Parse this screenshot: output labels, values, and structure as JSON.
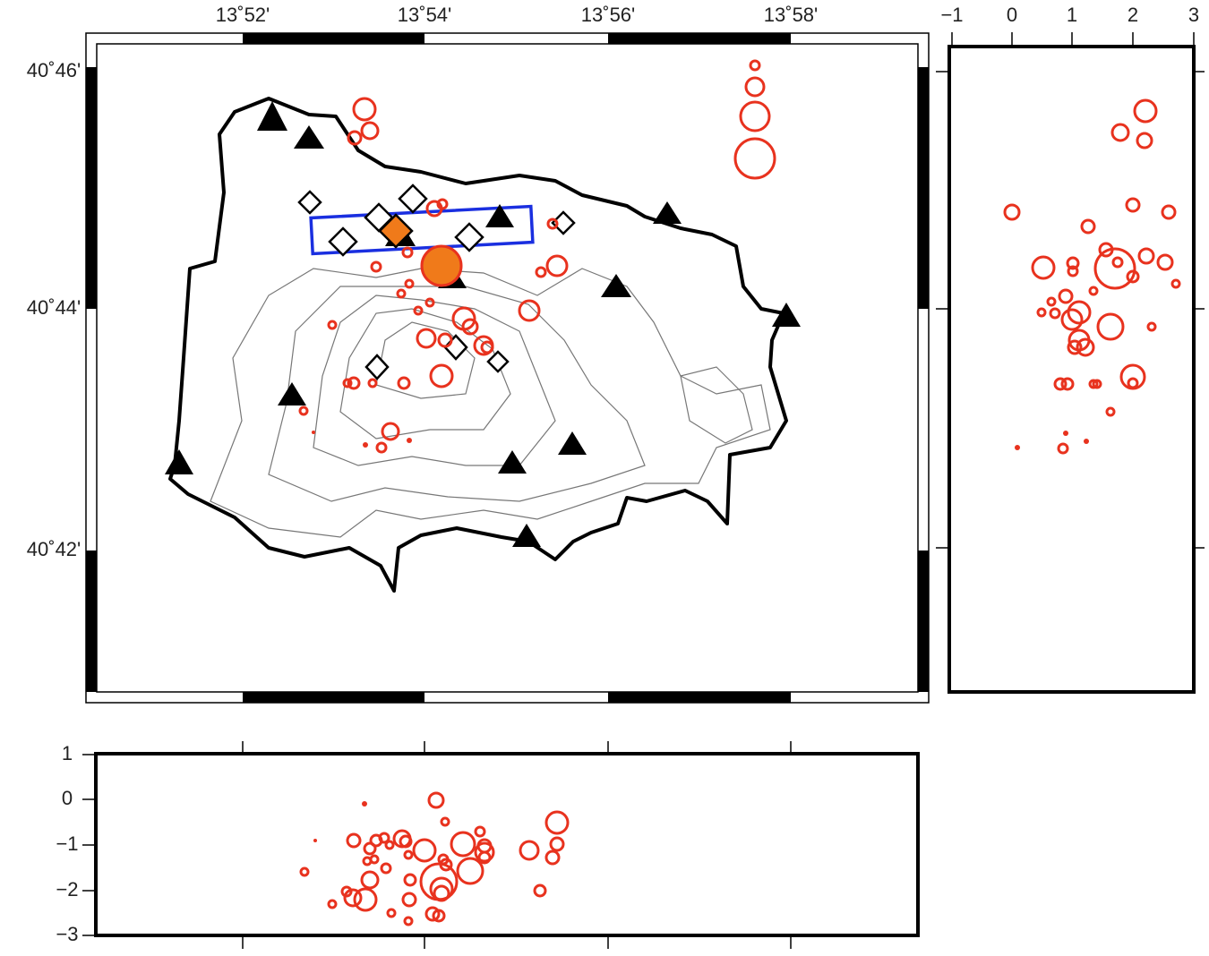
{
  "map": {
    "lon_labels": [
      "13˚52'",
      "13˚54'",
      "13˚56'",
      "13˚58'"
    ],
    "lat_labels": [
      "40˚46'",
      "40˚44'",
      "40˚42'"
    ]
  },
  "east_section": {
    "ticks": [
      "−1",
      "0",
      "1",
      "2",
      "3"
    ]
  },
  "north_section": {
    "ticks": [
      "1",
      "0",
      "−1",
      "−2",
      "−3"
    ]
  }
}
